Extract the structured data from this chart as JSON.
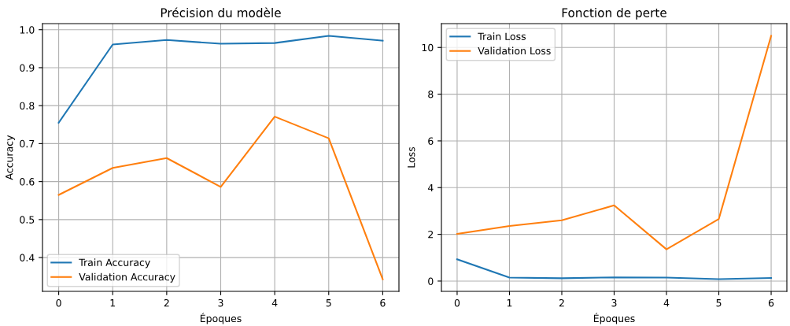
{
  "chart_data": [
    {
      "type": "line",
      "title": "Précision du modèle",
      "xlabel": "Époques",
      "ylabel": "Accuracy",
      "x": [
        0,
        1,
        2,
        3,
        4,
        5,
        6
      ],
      "xlim": [
        -0.3,
        6.3
      ],
      "xticks": [
        0,
        1,
        2,
        3,
        4,
        5,
        6
      ],
      "ylim": [
        0.311,
        1.016
      ],
      "yticks": [
        0.4,
        0.5,
        0.6,
        0.7,
        0.8,
        0.9,
        {
          "value": 1.0,
          "label": "1.0"
        }
      ],
      "grid": true,
      "legend": "bottom left",
      "series": [
        {
          "name": "Train Accuracy",
          "color": "#1f77b4",
          "values": [
            0.755,
            0.961,
            0.973,
            0.963,
            0.965,
            0.984,
            0.971
          ]
        },
        {
          "name": "Validation Accuracy",
          "color": "#ff7f0e",
          "values": [
            0.565,
            0.636,
            0.662,
            0.586,
            0.771,
            0.714,
            0.343
          ]
        }
      ]
    },
    {
      "type": "line",
      "title": "Fonction de perte",
      "xlabel": "Époques",
      "ylabel": "Loss",
      "x": [
        0,
        1,
        2,
        3,
        4,
        5,
        6
      ],
      "xlim": [
        -0.3,
        6.3
      ],
      "xticks": [
        0,
        1,
        2,
        3,
        4,
        5,
        6
      ],
      "ylim": [
        -0.44,
        11.02
      ],
      "yticks": [
        0,
        2,
        4,
        6,
        8,
        10
      ],
      "grid": true,
      "legend": "top left",
      "series": [
        {
          "name": "Train Loss",
          "color": "#1f77b4",
          "values": [
            0.93,
            0.15,
            0.12,
            0.16,
            0.15,
            0.08,
            0.13
          ]
        },
        {
          "name": "Validation Loss",
          "color": "#ff7f0e",
          "values": [
            2.02,
            2.36,
            2.6,
            3.24,
            1.36,
            2.66,
            10.5
          ]
        }
      ]
    }
  ]
}
